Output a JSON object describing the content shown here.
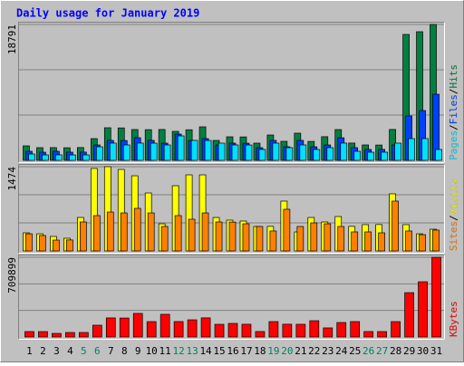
{
  "chart_data": {
    "type": "bar",
    "title": "Daily usage for January 2019",
    "categories": [
      "1",
      "2",
      "3",
      "4",
      "5",
      "6",
      "7",
      "8",
      "9",
      "10",
      "11",
      "12",
      "13",
      "14",
      "15",
      "16",
      "17",
      "18",
      "19",
      "20",
      "21",
      "22",
      "23",
      "24",
      "25",
      "26",
      "27",
      "28",
      "29",
      "30",
      "31"
    ],
    "x_label_colors": [
      "#000000",
      "#000000",
      "#000000",
      "#000000",
      "#008060",
      "#008060",
      "#000000",
      "#000000",
      "#000000",
      "#000000",
      "#000000",
      "#008060",
      "#008060",
      "#000000",
      "#000000",
      "#000000",
      "#000000",
      "#000000",
      "#008060",
      "#008060",
      "#000000",
      "#000000",
      "#000000",
      "#000000",
      "#000000",
      "#008060",
      "#008060",
      "#000000",
      "#000000",
      "#000000",
      "#000000"
    ],
    "legend_separator": "/",
    "panels": [
      {
        "ylim": [
          0,
          18791
        ],
        "yticks": [
          18791
        ],
        "series": [
          {
            "name": "Hits",
            "color": "#008040",
            "values": [
              2004,
              1754,
              1762,
              1741,
              1770,
              3006,
              4510,
              4487,
              4259,
              4242,
              4266,
              4009,
              4231,
              4635,
              2756,
              3257,
              3240,
              2380,
              3508,
              2631,
              3758,
              2620,
              3271,
              4255,
              2391,
              2130,
              2118,
              4270,
              17413,
              17788,
              18791
            ]
          },
          {
            "name": "Files",
            "color": "#0040ff",
            "values": [
              1253,
              1127,
              1250,
              1131,
              1140,
              2130,
              2756,
              2740,
              3132,
              2760,
              2380,
              3633,
              2750,
              3006,
              2130,
              2380,
              2370,
              1754,
              2756,
              1879,
              2760,
              1880,
              2130,
              3120,
              1754,
              1503,
              1510,
              2130,
              6138,
              6890,
              9145
            ]
          },
          {
            "name": "Pages",
            "color": "#00e0ff",
            "values": [
              877,
              752,
              760,
              748,
              755,
              1879,
              2380,
              2130,
              2385,
              2375,
              2130,
              3382,
              2756,
              2750,
              2380,
              2130,
              2125,
              1503,
              2380,
              1754,
              2130,
              1505,
              1754,
              2385,
              1253,
              1127,
              1130,
              2380,
              3006,
              3010,
              1503
            ]
          }
        ]
      },
      {
        "ylim": [
          0,
          1474
        ],
        "yticks": [
          1474
        ],
        "series": [
          {
            "name": "Visits",
            "color": "#ffff00",
            "values": [
              317,
              300,
              254,
              222,
              586,
              1443,
              1474,
              1426,
              1315,
              1014,
              475,
              1141,
              1331,
              1331,
              586,
              539,
              523,
              428,
              430,
              872,
              333,
              586,
              507,
              602,
              430,
              460,
              462,
              999,
              460,
              300,
              380
            ]
          },
          {
            "name": "Sites",
            "color": "#ff8000",
            "values": [
              300,
              270,
              190,
              192,
              507,
              618,
              681,
              665,
              745,
              665,
              428,
              618,
              555,
              665,
              507,
              505,
              475,
              428,
              349,
              729,
              428,
              491,
              475,
              428,
              333,
              333,
              317,
              872,
              349,
              285,
              365
            ]
          }
        ]
      },
      {
        "ylim": [
          0,
          709899
        ],
        "yticks": [
          709899
        ],
        "series": [
          {
            "name": "KBytes",
            "color": "#ff0000",
            "values": [
              48400,
              48100,
              32000,
              40000,
              40300,
              105000,
              170000,
              169000,
              210000,
              137000,
              202000,
              137500,
              153000,
              170500,
              113000,
              121000,
              113500,
              48900,
              137200,
              113800,
              113200,
              145000,
              81000,
              129000,
              137300,
              48700,
              48300,
              137100,
              395000,
              492000,
              709899
            ]
          }
        ]
      }
    ]
  }
}
